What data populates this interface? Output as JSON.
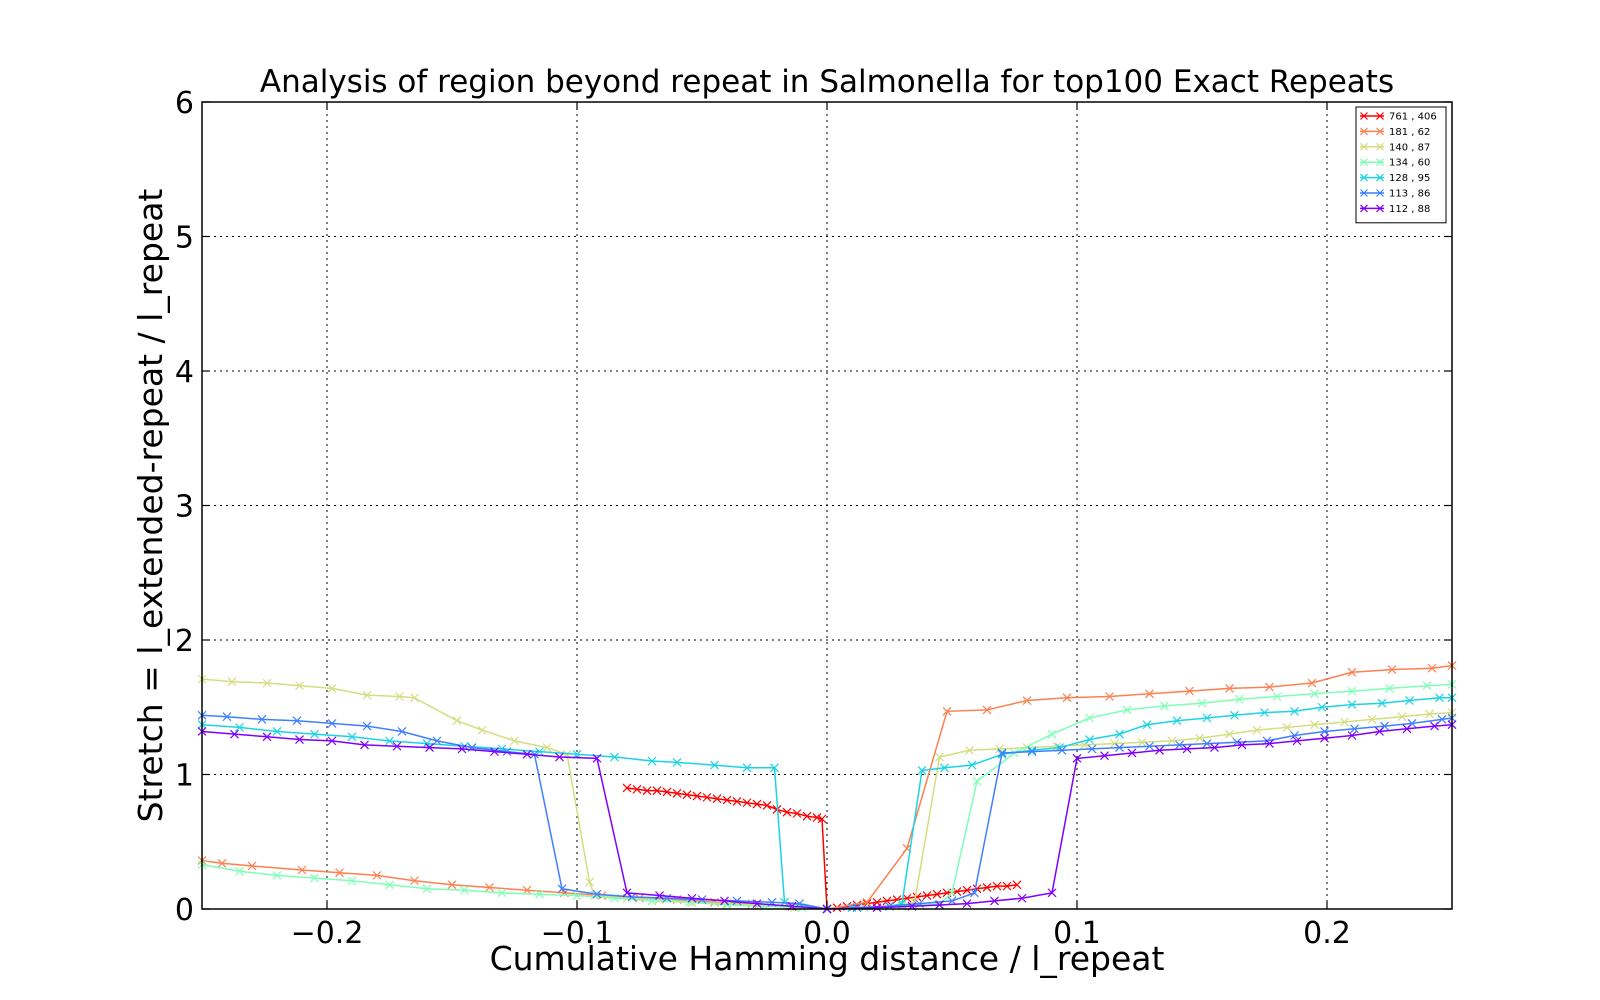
{
  "chart_data": {
    "type": "line",
    "title": "Analysis of region beyond repeat in Salmonella for top100 Exact Repeats",
    "xlabel": "Cumulative Hamming distance / l_repeat",
    "ylabel": "Stretch =  l_extended-repeat / l_repeat",
    "xlim": [
      -0.25,
      0.25
    ],
    "ylim": [
      0,
      6
    ],
    "xticks": [
      -0.2,
      -0.1,
      0.0,
      0.1,
      0.2
    ],
    "xtick_labels": [
      "−0.2",
      "−0.1",
      "0.0",
      "0.1",
      "0.2"
    ],
    "yticks": [
      0,
      1,
      2,
      3,
      4,
      5,
      6
    ],
    "ytick_labels": [
      "0",
      "1",
      "2",
      "3",
      "4",
      "5",
      "6"
    ],
    "grid": true,
    "legend_position": "top-right",
    "series": [
      {
        "name": "761 , 406",
        "color": "#ff0000",
        "marker": "x",
        "left": {
          "x": [
            -0.08,
            -0.076,
            -0.072,
            -0.068,
            -0.064,
            -0.06,
            -0.056,
            -0.052,
            -0.048,
            -0.044,
            -0.04,
            -0.036,
            -0.032,
            -0.028,
            -0.024,
            -0.02,
            -0.016,
            -0.012,
            -0.008,
            -0.004,
            -0.002,
            0.0
          ],
          "y": [
            0.9,
            0.89,
            0.88,
            0.88,
            0.87,
            0.86,
            0.85,
            0.84,
            0.83,
            0.82,
            0.81,
            0.8,
            0.79,
            0.78,
            0.77,
            0.74,
            0.72,
            0.71,
            0.69,
            0.68,
            0.67,
            0.0
          ]
        },
        "right": {
          "x": [
            0.0,
            0.004,
            0.008,
            0.012,
            0.016,
            0.02,
            0.024,
            0.028,
            0.032,
            0.036,
            0.04,
            0.044,
            0.048,
            0.052,
            0.056,
            0.06,
            0.064,
            0.068,
            0.072,
            0.076
          ],
          "y": [
            0.0,
            0.01,
            0.02,
            0.03,
            0.04,
            0.05,
            0.06,
            0.07,
            0.08,
            0.09,
            0.1,
            0.11,
            0.12,
            0.13,
            0.14,
            0.15,
            0.16,
            0.17,
            0.17,
            0.18
          ]
        }
      },
      {
        "name": "181 , 62",
        "color": "#ff7f4f",
        "marker": "x",
        "left": {
          "x": [
            -0.25,
            -0.242,
            -0.23,
            -0.21,
            -0.195,
            -0.18,
            -0.165,
            -0.15,
            -0.135,
            -0.12,
            -0.105,
            -0.09,
            -0.075,
            -0.06,
            -0.045,
            -0.03,
            -0.015,
            0.0
          ],
          "y": [
            0.36,
            0.34,
            0.32,
            0.29,
            0.27,
            0.25,
            0.21,
            0.18,
            0.16,
            0.14,
            0.12,
            0.1,
            0.08,
            0.07,
            0.05,
            0.04,
            0.02,
            0.0
          ]
        },
        "right": {
          "x": [
            0.0,
            0.016,
            0.032,
            0.048,
            0.064,
            0.08,
            0.096,
            0.113,
            0.129,
            0.145,
            0.161,
            0.177,
            0.194,
            0.21,
            0.226,
            0.242,
            0.25
          ],
          "y": [
            0.0,
            0.05,
            0.45,
            1.47,
            1.48,
            1.55,
            1.57,
            1.58,
            1.6,
            1.62,
            1.64,
            1.65,
            1.68,
            1.76,
            1.78,
            1.79,
            1.81
          ]
        }
      },
      {
        "name": "140 , 87",
        "color": "#d4dd80",
        "marker": "x",
        "left": {
          "x": [
            -0.25,
            -0.238,
            -0.224,
            -0.211,
            -0.198,
            -0.184,
            -0.171,
            -0.165,
            -0.148,
            -0.138,
            -0.125,
            -0.112,
            -0.104,
            -0.095,
            -0.093,
            -0.08,
            -0.067,
            -0.054,
            -0.04,
            -0.027,
            -0.013,
            0.0
          ],
          "y": [
            1.71,
            1.69,
            1.68,
            1.66,
            1.64,
            1.59,
            1.58,
            1.57,
            1.4,
            1.33,
            1.25,
            1.2,
            1.15,
            0.2,
            0.1,
            0.08,
            0.07,
            0.05,
            0.04,
            0.03,
            0.01,
            0.0
          ]
        },
        "right": {
          "x": [
            0.0,
            0.015,
            0.03,
            0.035,
            0.045,
            0.057,
            0.069,
            0.08,
            0.092,
            0.103,
            0.115,
            0.126,
            0.138,
            0.149,
            0.161,
            0.172,
            0.184,
            0.195,
            0.207,
            0.218,
            0.23,
            0.241,
            0.25
          ],
          "y": [
            0.0,
            0.01,
            0.03,
            0.05,
            1.13,
            1.18,
            1.19,
            1.2,
            1.21,
            1.22,
            1.23,
            1.24,
            1.25,
            1.27,
            1.3,
            1.33,
            1.35,
            1.37,
            1.39,
            1.41,
            1.43,
            1.45,
            1.46
          ]
        }
      },
      {
        "name": "134 , 60",
        "color": "#7fffb5",
        "marker": "x",
        "left": {
          "x": [
            -0.25,
            -0.235,
            -0.22,
            -0.205,
            -0.19,
            -0.175,
            -0.16,
            -0.145,
            -0.13,
            -0.115,
            -0.1,
            -0.085,
            -0.07,
            -0.055,
            -0.04,
            -0.025,
            -0.01,
            0.0
          ],
          "y": [
            0.33,
            0.28,
            0.25,
            0.23,
            0.21,
            0.18,
            0.15,
            0.14,
            0.12,
            0.11,
            0.1,
            0.08,
            0.06,
            0.05,
            0.03,
            0.02,
            0.01,
            0.0
          ]
        },
        "right": {
          "x": [
            0.0,
            0.015,
            0.03,
            0.045,
            0.05,
            0.06,
            0.075,
            0.09,
            0.105,
            0.12,
            0.135,
            0.15,
            0.165,
            0.18,
            0.195,
            0.21,
            0.225,
            0.24,
            0.25
          ],
          "y": [
            0.0,
            0.01,
            0.02,
            0.04,
            0.12,
            0.95,
            1.16,
            1.3,
            1.42,
            1.48,
            1.51,
            1.53,
            1.56,
            1.58,
            1.6,
            1.62,
            1.64,
            1.66,
            1.67
          ]
        }
      },
      {
        "name": "128 , 95",
        "color": "#1ad4e6",
        "marker": "x",
        "left": {
          "x": [
            -0.25,
            -0.235,
            -0.22,
            -0.205,
            -0.19,
            -0.175,
            -0.16,
            -0.145,
            -0.13,
            -0.115,
            -0.1,
            -0.085,
            -0.07,
            -0.06,
            -0.045,
            -0.032,
            -0.021,
            -0.017,
            0.0
          ],
          "y": [
            1.37,
            1.35,
            1.32,
            1.3,
            1.28,
            1.25,
            1.23,
            1.21,
            1.19,
            1.17,
            1.15,
            1.13,
            1.1,
            1.09,
            1.07,
            1.05,
            1.05,
            0.05,
            0.0
          ]
        },
        "right": {
          "x": [
            0.0,
            0.01,
            0.025,
            0.03,
            0.038,
            0.047,
            0.058,
            0.07,
            0.082,
            0.093,
            0.105,
            0.117,
            0.128,
            0.14,
            0.152,
            0.163,
            0.175,
            0.187,
            0.198,
            0.21,
            0.222,
            0.233,
            0.245,
            0.25
          ],
          "y": [
            0.0,
            0.01,
            0.02,
            0.04,
            1.03,
            1.05,
            1.07,
            1.15,
            1.18,
            1.2,
            1.26,
            1.3,
            1.37,
            1.4,
            1.42,
            1.44,
            1.46,
            1.47,
            1.5,
            1.52,
            1.53,
            1.55,
            1.57,
            1.57
          ]
        }
      },
      {
        "name": "113 , 86",
        "color": "#3f7fff",
        "marker": "x",
        "left": {
          "x": [
            -0.25,
            -0.24,
            -0.226,
            -0.212,
            -0.198,
            -0.184,
            -0.17,
            -0.156,
            -0.142,
            -0.128,
            -0.117,
            -0.106,
            -0.092,
            -0.078,
            -0.064,
            -0.05,
            -0.036,
            -0.022,
            -0.011,
            0.0
          ],
          "y": [
            1.44,
            1.43,
            1.41,
            1.4,
            1.38,
            1.36,
            1.32,
            1.25,
            1.2,
            1.17,
            1.15,
            0.15,
            0.11,
            0.09,
            0.08,
            0.07,
            0.06,
            0.05,
            0.04,
            0.0
          ]
        },
        "right": {
          "x": [
            0.0,
            0.012,
            0.025,
            0.037,
            0.05,
            0.059,
            0.07,
            0.082,
            0.094,
            0.106,
            0.117,
            0.129,
            0.141,
            0.152,
            0.164,
            0.176,
            0.187,
            0.199,
            0.211,
            0.223,
            0.234,
            0.246,
            0.25
          ],
          "y": [
            0.0,
            0.01,
            0.02,
            0.04,
            0.06,
            0.12,
            1.16,
            1.17,
            1.18,
            1.19,
            1.2,
            1.21,
            1.22,
            1.23,
            1.24,
            1.25,
            1.29,
            1.32,
            1.34,
            1.36,
            1.38,
            1.41,
            1.42
          ]
        }
      },
      {
        "name": "112 , 88",
        "color": "#7f00ff",
        "marker": "x",
        "left": {
          "x": [
            -0.25,
            -0.237,
            -0.224,
            -0.211,
            -0.198,
            -0.185,
            -0.172,
            -0.159,
            -0.146,
            -0.133,
            -0.12,
            -0.107,
            -0.092,
            -0.08,
            -0.067,
            -0.054,
            -0.041,
            -0.028,
            -0.014,
            0.0
          ],
          "y": [
            1.32,
            1.3,
            1.28,
            1.26,
            1.25,
            1.22,
            1.21,
            1.2,
            1.19,
            1.17,
            1.15,
            1.13,
            1.12,
            0.12,
            0.1,
            0.08,
            0.06,
            0.04,
            0.02,
            0.0
          ]
        },
        "right": {
          "x": [
            0.0,
            0.02,
            0.034,
            0.045,
            0.056,
            0.067,
            0.078,
            0.09,
            0.1,
            0.111,
            0.122,
            0.133,
            0.144,
            0.155,
            0.166,
            0.177,
            0.188,
            0.199,
            0.21,
            0.221,
            0.232,
            0.243,
            0.25
          ],
          "y": [
            0.0,
            0.01,
            0.02,
            0.03,
            0.04,
            0.06,
            0.08,
            0.12,
            1.12,
            1.14,
            1.16,
            1.18,
            1.19,
            1.2,
            1.22,
            1.23,
            1.25,
            1.27,
            1.29,
            1.32,
            1.34,
            1.36,
            1.37
          ]
        }
      }
    ]
  }
}
